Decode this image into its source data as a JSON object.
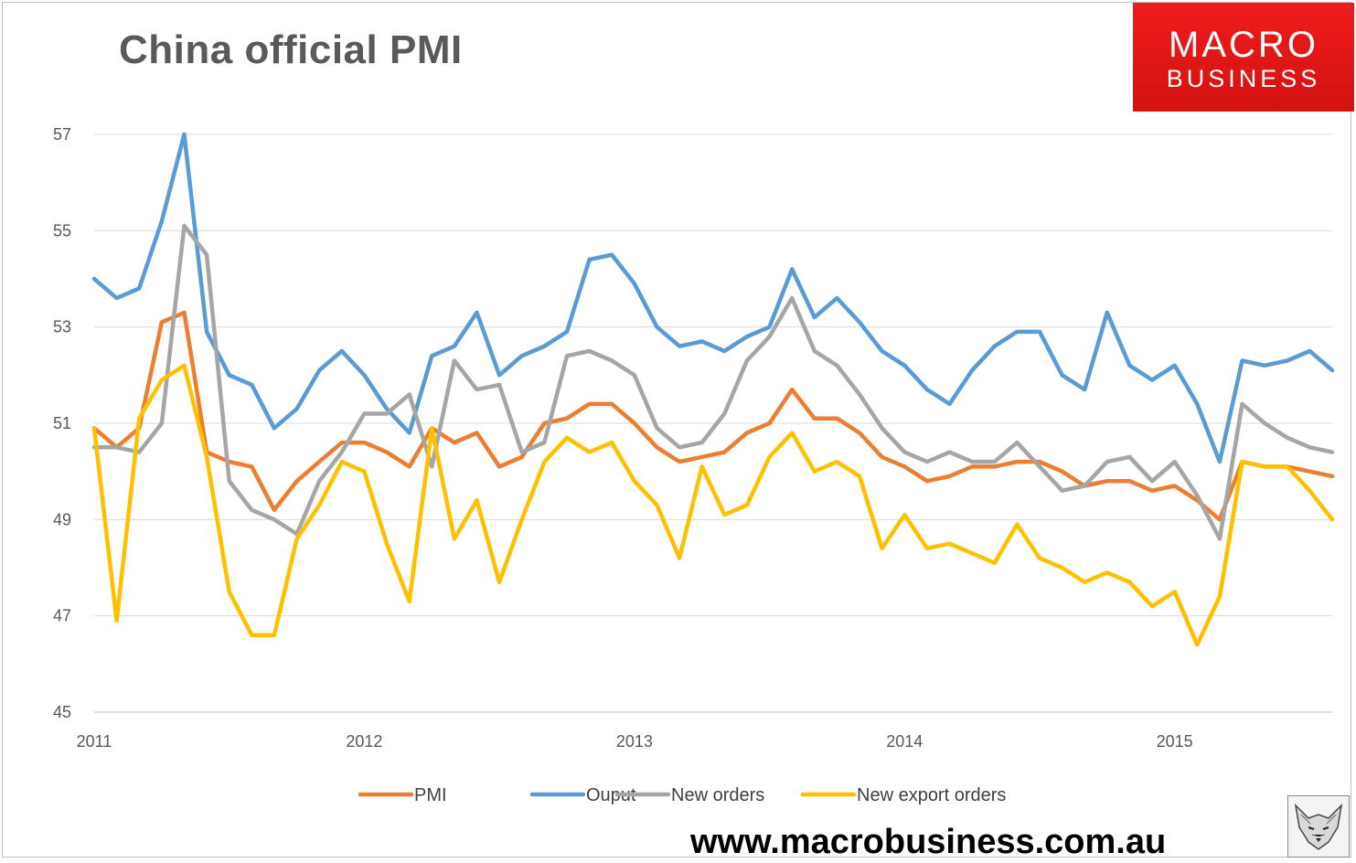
{
  "title": "China official PMI",
  "logo": {
    "line1": "MACRO",
    "line2": "BUSINESS"
  },
  "url": "www.macrobusiness.com.au",
  "chart_data": {
    "type": "line",
    "title": "China official PMI",
    "xlabel": "",
    "ylabel": "",
    "ylim": [
      45,
      57
    ],
    "yticks": [
      45,
      47,
      49,
      51,
      53,
      55,
      57
    ],
    "xticks": [
      "2011",
      "2012",
      "2013",
      "2014",
      "2015"
    ],
    "grid": true,
    "legend": "bottom",
    "x_start": "2011-01",
    "x_step": "month",
    "series": [
      {
        "name": "PMI",
        "color": "#ed7d31",
        "values": [
          50.9,
          50.5,
          50.9,
          53.1,
          53.3,
          50.4,
          50.2,
          50.1,
          49.2,
          49.8,
          50.2,
          50.6,
          50.6,
          50.4,
          50.1,
          50.9,
          50.6,
          50.8,
          50.1,
          50.3,
          51.0,
          51.1,
          51.4,
          51.4,
          51.0,
          50.5,
          50.2,
          50.3,
          50.4,
          50.8,
          51.0,
          51.7,
          51.1,
          51.1,
          50.8,
          50.3,
          50.1,
          49.8,
          49.9,
          50.1,
          50.1,
          50.2,
          50.2,
          50.0,
          49.7,
          49.8,
          49.8,
          49.6,
          49.7,
          49.4,
          49.0,
          50.2,
          50.1,
          50.1,
          50.0,
          49.9
        ]
      },
      {
        "name": "Ouput",
        "color": "#5b9bd5",
        "values": [
          54.0,
          53.6,
          53.8,
          55.2,
          57.0,
          52.9,
          52.0,
          51.8,
          50.9,
          51.3,
          52.1,
          52.5,
          52.0,
          51.3,
          50.8,
          52.4,
          52.6,
          53.3,
          52.0,
          52.4,
          52.6,
          52.9,
          54.4,
          54.5,
          53.9,
          53.0,
          52.6,
          52.7,
          52.5,
          52.8,
          53.0,
          54.2,
          53.2,
          53.6,
          53.1,
          52.5,
          52.2,
          51.7,
          51.4,
          52.1,
          52.6,
          52.9,
          52.9,
          52.0,
          51.7,
          53.3,
          52.2,
          51.9,
          52.2,
          51.4,
          50.2,
          52.3,
          52.2,
          52.3,
          52.5,
          52.1
        ]
      },
      {
        "name": "New orders",
        "color": "#a5a5a5",
        "values": [
          50.5,
          50.5,
          50.4,
          51.0,
          55.1,
          54.5,
          49.8,
          49.2,
          49.0,
          48.7,
          49.8,
          50.4,
          51.2,
          51.2,
          51.6,
          50.1,
          52.3,
          51.7,
          51.8,
          50.4,
          50.6,
          52.4,
          52.5,
          52.3,
          52.0,
          50.9,
          50.5,
          50.6,
          51.2,
          52.3,
          52.8,
          53.6,
          52.5,
          52.2,
          51.6,
          50.9,
          50.4,
          50.2,
          50.4,
          50.2,
          50.2,
          50.6,
          50.1,
          49.6,
          49.7,
          50.2,
          50.3,
          49.8,
          50.2,
          49.5,
          48.6,
          51.4,
          51.0,
          50.7,
          50.5,
          50.4
        ]
      },
      {
        "name": "New export orders",
        "color": "#ffc000",
        "values": [
          50.9,
          46.9,
          51.1,
          51.9,
          52.2,
          50.3,
          47.5,
          46.6,
          46.6,
          48.6,
          49.3,
          50.2,
          50.0,
          48.5,
          47.3,
          50.9,
          48.6,
          49.4,
          47.7,
          49.0,
          50.2,
          50.7,
          50.4,
          50.6,
          49.8,
          49.3,
          48.2,
          50.1,
          49.1,
          49.3,
          50.3,
          50.8,
          50.0,
          50.2,
          49.9,
          48.4,
          49.1,
          48.4,
          48.5,
          48.3,
          48.1,
          48.9,
          48.2,
          48.0,
          47.7,
          47.9,
          47.7,
          47.2,
          47.5,
          46.4,
          47.4,
          50.2,
          50.1,
          50.1,
          49.6,
          49.0
        ]
      }
    ]
  }
}
